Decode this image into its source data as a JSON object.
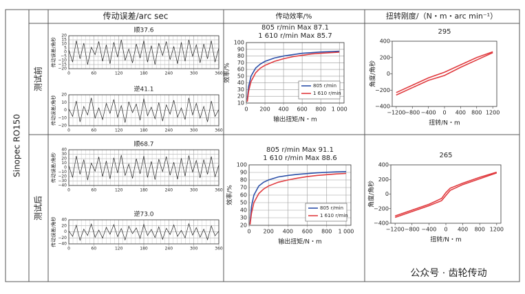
{
  "table": {
    "header": [
      "传动误差/arc sec",
      "传动效率/%",
      "扭转刚度/（N・m・arc min⁻¹）"
    ],
    "side": "Sinopec RO150",
    "rows": [
      "测试前",
      "测试后"
    ],
    "watermark": "公众号 · 齿轮传动"
  },
  "chart_data": [
    {
      "type": "line",
      "title": "顺37.6",
      "ylabel": "传动误差/角秒",
      "grid": true,
      "xlim": [
        0,
        360
      ],
      "xticks": [
        0,
        60,
        120,
        180,
        240,
        300,
        360
      ],
      "ylim": [
        -20,
        20
      ],
      "yticks": [
        {
          "value": -20,
          "label": "−20"
        },
        {
          "value": -15,
          "label": "−15"
        },
        {
          "value": -10,
          "label": "−10"
        },
        {
          "value": -5,
          "label": "−5"
        },
        0,
        5,
        10,
        15,
        20
      ],
      "x": [
        0,
        9,
        18,
        27,
        36,
        45,
        54,
        63,
        72,
        81,
        90,
        99,
        108,
        117,
        126,
        135,
        144,
        153,
        162,
        171,
        180,
        189,
        198,
        207,
        216,
        225,
        234,
        243,
        252,
        261,
        270,
        279,
        288,
        297,
        306,
        315,
        324,
        333,
        342,
        351,
        360
      ],
      "series": [
        {
          "color": "#222222",
          "values": [
            3,
            -12,
            14,
            -8,
            11,
            -15,
            6,
            -3,
            13,
            -11,
            9,
            -14,
            12,
            -6,
            15,
            -10,
            4,
            -13,
            10,
            -7,
            14,
            -12,
            8,
            -15,
            11,
            -4,
            13,
            -9,
            7,
            -14,
            12,
            -11,
            15,
            -5,
            9,
            -13,
            10,
            -8,
            14,
            -12,
            5
          ]
        }
      ]
    },
    {
      "type": "line",
      "title": "逆41.1",
      "ylabel": "传动误差/角秒",
      "grid": true,
      "xlim": [
        0,
        360
      ],
      "xticks": [
        0,
        60,
        120,
        180,
        240,
        300,
        360
      ],
      "ylim": [
        -20,
        20
      ],
      "yticks": [
        {
          "value": -20,
          "label": "−20"
        },
        {
          "value": -10,
          "label": "−10"
        },
        0,
        10,
        20
      ],
      "x": [
        0,
        9,
        18,
        27,
        36,
        45,
        54,
        63,
        72,
        81,
        90,
        99,
        108,
        117,
        126,
        135,
        144,
        153,
        162,
        171,
        180,
        189,
        198,
        207,
        216,
        225,
        234,
        243,
        252,
        261,
        270,
        279,
        288,
        297,
        306,
        315,
        324,
        333,
        342,
        351,
        360
      ],
      "series": [
        {
          "color": "#222222",
          "values": [
            2,
            -8,
            12,
            -15,
            5,
            -6,
            16,
            -10,
            3,
            -12,
            9,
            -4,
            14,
            -9,
            6,
            -16,
            11,
            -3,
            8,
            -13,
            15,
            -7,
            4,
            -11,
            10,
            -14,
            7,
            -5,
            13,
            -9,
            3,
            -12,
            16,
            -6,
            9,
            -10,
            5,
            -15,
            12,
            -8,
            1
          ]
        }
      ]
    },
    {
      "type": "line",
      "title": "805 r/min  Max 87.1",
      "subtitle": "1 610 r/min  Max 85.7",
      "xlabel": "输出扭矩/N・m",
      "ylabel": "效率/%",
      "grid": true,
      "legend": "lower right",
      "xlim": [
        0,
        1050
      ],
      "xticks": [
        0,
        200,
        400,
        600,
        800,
        {
          "value": 1000,
          "label": "1 000"
        }
      ],
      "ylim": [
        10,
        100
      ],
      "yticks": [
        10,
        20,
        30,
        40,
        50,
        60,
        70,
        80,
        90,
        100
      ],
      "x": [
        10,
        25,
        50,
        100,
        150,
        200,
        300,
        400,
        500,
        600,
        700,
        800,
        900,
        1000
      ],
      "series": [
        {
          "name": "805 r/min",
          "color": "#2b4fa8",
          "values": [
            15,
            35,
            50,
            62,
            68,
            72,
            77,
            80,
            82,
            84,
            85,
            86,
            86.5,
            87.1
          ]
        },
        {
          "name": "1 610 r/min",
          "color": "#e03a3e",
          "values": [
            12,
            28,
            42,
            55,
            62,
            66,
            72,
            76,
            79,
            81,
            83,
            84,
            85,
            85.7
          ]
        }
      ]
    },
    {
      "type": "line",
      "title": "295",
      "xlabel": "扭转/N・m",
      "ylabel": "角度/角秒",
      "grid": false,
      "xlim": [
        -1300,
        1300
      ],
      "xticks": [
        {
          "value": -1200,
          "label": "−1200"
        },
        {
          "value": -800,
          "label": "−800"
        },
        {
          "value": -400,
          "label": "−400"
        },
        0,
        400,
        800,
        1200
      ],
      "ylim": [
        -400,
        400
      ],
      "yticks": [
        {
          "value": -400,
          "label": "−400"
        },
        {
          "value": -200,
          "label": "−200"
        },
        0,
        200,
        400
      ],
      "x": [
        -1200,
        -800,
        -400,
        0,
        400,
        800,
        1200
      ],
      "series": [
        {
          "color": "#e03a3e",
          "values": [
            -230,
            -140,
            -50,
            20,
            110,
            200,
            270
          ]
        },
        {
          "color": "#e03a3e",
          "values": [
            -260,
            -170,
            -80,
            -20,
            80,
            170,
            260
          ]
        }
      ]
    },
    {
      "type": "line",
      "title": "顺68.7",
      "ylabel": "传动误差/角秒",
      "grid": true,
      "xlim": [
        0,
        360
      ],
      "xticks": [
        0,
        60,
        120,
        180,
        240,
        300,
        360
      ],
      "ylim": [
        -40,
        40
      ],
      "yticks": [
        {
          "value": -40,
          "label": "−40"
        },
        {
          "value": -30,
          "label": "−30"
        },
        {
          "value": -20,
          "label": "−20"
        },
        {
          "value": -10,
          "label": "−10"
        },
        0,
        10,
        20,
        30,
        40
      ],
      "x": [
        0,
        9,
        18,
        27,
        36,
        45,
        54,
        63,
        72,
        81,
        90,
        99,
        108,
        117,
        126,
        135,
        144,
        153,
        162,
        171,
        180,
        189,
        198,
        207,
        216,
        225,
        234,
        243,
        252,
        261,
        270,
        279,
        288,
        297,
        306,
        315,
        324,
        333,
        342,
        351,
        360
      ],
      "series": [
        {
          "color": "#222222",
          "values": [
            5,
            -22,
            26,
            -15,
            18,
            -28,
            10,
            -8,
            24,
            -20,
            15,
            -25,
            22,
            -12,
            28,
            -18,
            8,
            -24,
            20,
            -14,
            26,
            -22,
            14,
            -27,
            19,
            -9,
            25,
            -17,
            12,
            -26,
            21,
            -19,
            27,
            -10,
            16,
            -23,
            18,
            -15,
            25,
            -21,
            6
          ]
        }
      ]
    },
    {
      "type": "line",
      "title": "逆73.0",
      "ylabel": "传动误差/角秒",
      "grid": true,
      "xlim": [
        0,
        360
      ],
      "xticks": [
        0,
        60,
        120,
        180,
        240,
        300,
        360
      ],
      "ylim": [
        -40,
        40
      ],
      "yticks": [
        {
          "value": -40,
          "label": "−40"
        },
        {
          "value": -20,
          "label": "−20"
        },
        0,
        20,
        40
      ],
      "x": [
        0,
        9,
        18,
        27,
        36,
        45,
        54,
        63,
        72,
        81,
        90,
        99,
        108,
        117,
        126,
        135,
        144,
        153,
        162,
        171,
        180,
        189,
        198,
        207,
        216,
        225,
        234,
        243,
        252,
        261,
        270,
        279,
        288,
        297,
        306,
        315,
        324,
        333,
        342,
        351,
        360
      ],
      "series": [
        {
          "color": "#222222",
          "values": [
            3,
            -15,
            22,
            -28,
            9,
            -12,
            26,
            -18,
            6,
            -21,
            15,
            -8,
            24,
            -16,
            11,
            -27,
            19,
            -6,
            13,
            -22,
            25,
            -12,
            8,
            -19,
            17,
            -25,
            12,
            -9,
            23,
            -15,
            5,
            -20,
            27,
            -11,
            14,
            -18,
            9,
            -26,
            20,
            -13,
            2
          ]
        }
      ]
    },
    {
      "type": "line",
      "title": "805 r/min  Max 91.1",
      "subtitle": "1 610 r/min  Max 88.6",
      "xlabel": "输出扭矩/N・m",
      "ylabel": "效率/%",
      "grid": true,
      "legend": "lower right",
      "xlim": [
        0,
        1050
      ],
      "xticks": [
        0,
        200,
        400,
        600,
        800,
        {
          "value": 1000,
          "label": "1 000"
        }
      ],
      "ylim": [
        20,
        100
      ],
      "yticks": [
        20,
        30,
        40,
        50,
        60,
        70,
        80,
        90,
        100
      ],
      "x": [
        10,
        25,
        50,
        100,
        150,
        200,
        300,
        400,
        500,
        600,
        700,
        800,
        900,
        1000
      ],
      "series": [
        {
          "name": "805 r/min",
          "color": "#2b4fa8",
          "values": [
            22,
            45,
            60,
            72,
            77,
            80,
            84,
            86,
            87.5,
            88.5,
            89.5,
            90.2,
            90.7,
            91.1
          ]
        },
        {
          "name": "1 610 r/min",
          "color": "#e03a3e",
          "values": [
            21,
            36,
            50,
            62,
            68,
            72,
            77,
            80,
            82.5,
            84.5,
            86,
            87,
            88,
            88.6
          ]
        }
      ]
    },
    {
      "type": "line",
      "title": "265",
      "xlabel": "扭转/N・m",
      "ylabel": "角度/角秒",
      "grid": false,
      "xlim": [
        -1300,
        1300
      ],
      "xticks": [
        {
          "value": -1200,
          "label": "−1200"
        },
        {
          "value": -800,
          "label": "−800"
        },
        {
          "value": -400,
          "label": "−400"
        },
        0,
        400,
        800,
        1200
      ],
      "ylim": [
        -400,
        400
      ],
      "yticks": [
        {
          "value": -400,
          "label": "−400"
        },
        {
          "value": -200,
          "label": "−200"
        },
        0,
        200,
        400
      ],
      "x": [
        -1200,
        -800,
        -400,
        -100,
        0,
        100,
        400,
        800,
        1200
      ],
      "series": [
        {
          "color": "#e03a3e",
          "values": [
            -300,
            -220,
            -140,
            -60,
            20,
            80,
            150,
            230,
            300
          ]
        },
        {
          "color": "#e03a3e",
          "values": [
            -320,
            -240,
            -160,
            -90,
            -20,
            50,
            130,
            210,
            290
          ]
        }
      ]
    }
  ]
}
